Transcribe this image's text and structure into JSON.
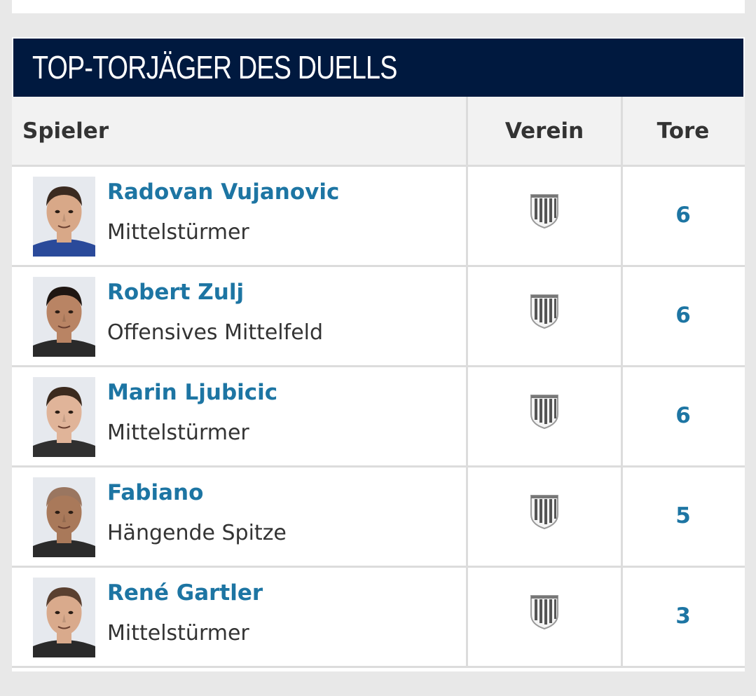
{
  "section": {
    "title": "TOP-TORJÄGER DES DUELLS",
    "header_bg": "#00193f",
    "link_color": "#1d75a3"
  },
  "table": {
    "columns": [
      "Spieler",
      "Verein",
      "Tore"
    ],
    "rows": [
      {
        "name": "Radovan Vujanovic",
        "position": "Mittelstürmer",
        "club_icon": "club-crest-icon",
        "goals": "6",
        "skin": "#d8a888",
        "hair": "#3a2a20",
        "shirt": "#2a4a9a"
      },
      {
        "name": "Robert Zulj",
        "position": "Offensives Mittelfeld",
        "club_icon": "club-crest-icon",
        "goals": "6",
        "skin": "#b98464",
        "hair": "#1f1612",
        "shirt": "#2a2a2a"
      },
      {
        "name": "Marin Ljubicic",
        "position": "Mittelstürmer",
        "club_icon": "club-crest-icon",
        "goals": "6",
        "skin": "#e0b499",
        "hair": "#3b2a1e",
        "shirt": "#303030"
      },
      {
        "name": "Fabiano",
        "position": "Hängende Spitze",
        "club_icon": "club-crest-icon",
        "goals": "5",
        "skin": "#a9795a",
        "hair": "#9a7660",
        "shirt": "#2b2b2b"
      },
      {
        "name": "René Gartler",
        "position": "Mittelstürmer",
        "club_icon": "club-crest-icon",
        "goals": "3",
        "skin": "#d9aa8c",
        "hair": "#5a4030",
        "shirt": "#2a2a2a"
      }
    ]
  }
}
